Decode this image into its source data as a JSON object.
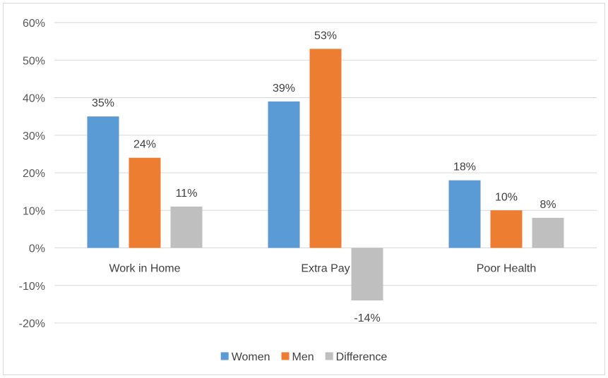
{
  "chart_data": {
    "type": "bar",
    "categories": [
      "Work in Home",
      "Extra Pay",
      "Poor Health"
    ],
    "series": [
      {
        "name": "Women",
        "values": [
          35,
          39,
          18
        ],
        "color": "#5b9bd5",
        "labels": [
          "35%",
          "39%",
          "18%"
        ]
      },
      {
        "name": "Men",
        "values": [
          24,
          53,
          10
        ],
        "color": "#ed7d31",
        "labels": [
          "24%",
          "53%",
          "10%"
        ]
      },
      {
        "name": "Difference",
        "values": [
          11,
          -14,
          8
        ],
        "color": "#bfbfbf",
        "labels": [
          "11%",
          "-14%",
          "8%"
        ]
      }
    ],
    "ylim": [
      -20,
      60
    ],
    "yticks": [
      60,
      50,
      40,
      30,
      20,
      10,
      0,
      -10,
      -20
    ],
    "ytick_labels": [
      "60%",
      "50%",
      "40%",
      "30%",
      "20%",
      "10%",
      "0%",
      "-10%",
      "-20%"
    ],
    "grid": true,
    "legend_position": "bottom",
    "gridline_color": "#d9d9d9"
  }
}
